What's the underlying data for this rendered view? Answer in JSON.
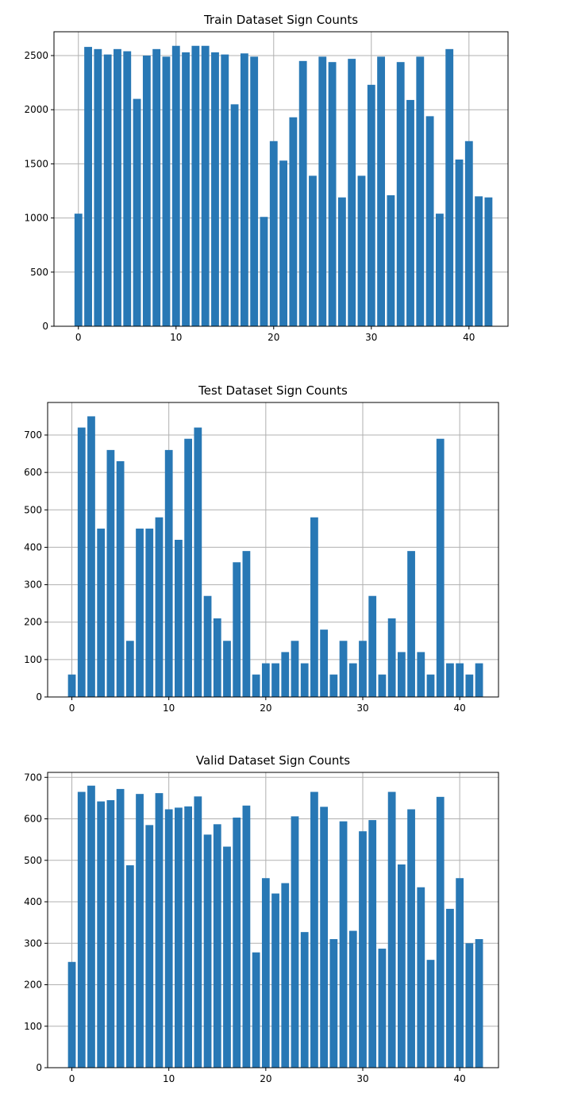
{
  "colors": {
    "bar": "#2878b5",
    "grid": "#b0b0b0",
    "axis": "#000000",
    "background": "#ffffff"
  },
  "chart_data": [
    {
      "type": "bar",
      "title": "Train Dataset Sign Counts",
      "xlabel": "",
      "ylabel": "",
      "categories": [
        0,
        1,
        2,
        3,
        4,
        5,
        6,
        7,
        8,
        9,
        10,
        11,
        12,
        13,
        14,
        15,
        16,
        17,
        18,
        19,
        20,
        21,
        22,
        23,
        24,
        25,
        26,
        27,
        28,
        29,
        30,
        31,
        32,
        33,
        34,
        35,
        36,
        37,
        38,
        39,
        40,
        41,
        42
      ],
      "values": [
        1040,
        2580,
        2560,
        2510,
        2560,
        2540,
        2100,
        2500,
        2560,
        2490,
        2590,
        2530,
        2590,
        2590,
        2530,
        2510,
        2050,
        2520,
        2490,
        1010,
        1710,
        1530,
        1930,
        2450,
        1390,
        2490,
        2440,
        1190,
        2470,
        1390,
        2230,
        2490,
        1210,
        2440,
        2090,
        2490,
        1940,
        1040,
        2560,
        1540,
        1710,
        1200,
        1190
      ],
      "xticks": [
        0,
        10,
        20,
        30,
        40
      ],
      "yticks": [
        0,
        500,
        1000,
        1500,
        2000,
        2500
      ],
      "xlim": [
        -2.5,
        44
      ],
      "ylim": [
        0,
        2720
      ],
      "grid": true
    },
    {
      "type": "bar",
      "title": "Test Dataset Sign Counts",
      "xlabel": "",
      "ylabel": "",
      "categories": [
        0,
        1,
        2,
        3,
        4,
        5,
        6,
        7,
        8,
        9,
        10,
        11,
        12,
        13,
        14,
        15,
        16,
        17,
        18,
        19,
        20,
        21,
        22,
        23,
        24,
        25,
        26,
        27,
        28,
        29,
        30,
        31,
        32,
        33,
        34,
        35,
        36,
        37,
        38,
        39,
        40,
        41,
        42
      ],
      "values": [
        60,
        720,
        750,
        450,
        660,
        630,
        150,
        450,
        450,
        480,
        660,
        420,
        690,
        720,
        270,
        210,
        150,
        360,
        390,
        60,
        90,
        90,
        120,
        150,
        90,
        480,
        180,
        60,
        150,
        90,
        150,
        270,
        60,
        210,
        120,
        390,
        120,
        60,
        690,
        90,
        90,
        60,
        90
      ],
      "xticks": [
        0,
        10,
        20,
        30,
        40
      ],
      "yticks": [
        0,
        100,
        200,
        300,
        400,
        500,
        600,
        700
      ],
      "xlim": [
        -2.5,
        44
      ],
      "ylim": [
        0,
        787
      ],
      "grid": true
    },
    {
      "type": "bar",
      "title": "Valid Dataset Sign Counts",
      "xlabel": "",
      "ylabel": "",
      "categories": [
        0,
        1,
        2,
        3,
        4,
        5,
        6,
        7,
        8,
        9,
        10,
        11,
        12,
        13,
        14,
        15,
        16,
        17,
        18,
        19,
        20,
        21,
        22,
        23,
        24,
        25,
        26,
        27,
        28,
        29,
        30,
        31,
        32,
        33,
        34,
        35,
        36,
        37,
        38,
        39,
        40,
        41,
        42
      ],
      "values": [
        255,
        665,
        680,
        642,
        645,
        672,
        488,
        660,
        585,
        662,
        623,
        627,
        630,
        654,
        562,
        587,
        533,
        603,
        632,
        278,
        457,
        420,
        445,
        606,
        327,
        665,
        629,
        310,
        594,
        330,
        570,
        597,
        287,
        665,
        490,
        623,
        435,
        260,
        653,
        383,
        457,
        300,
        310
      ],
      "xticks": [
        0,
        10,
        20,
        30,
        40
      ],
      "yticks": [
        0,
        100,
        200,
        300,
        400,
        500,
        600,
        700
      ],
      "xlim": [
        -2.5,
        44
      ],
      "ylim": [
        0,
        712
      ],
      "grid": true
    }
  ]
}
